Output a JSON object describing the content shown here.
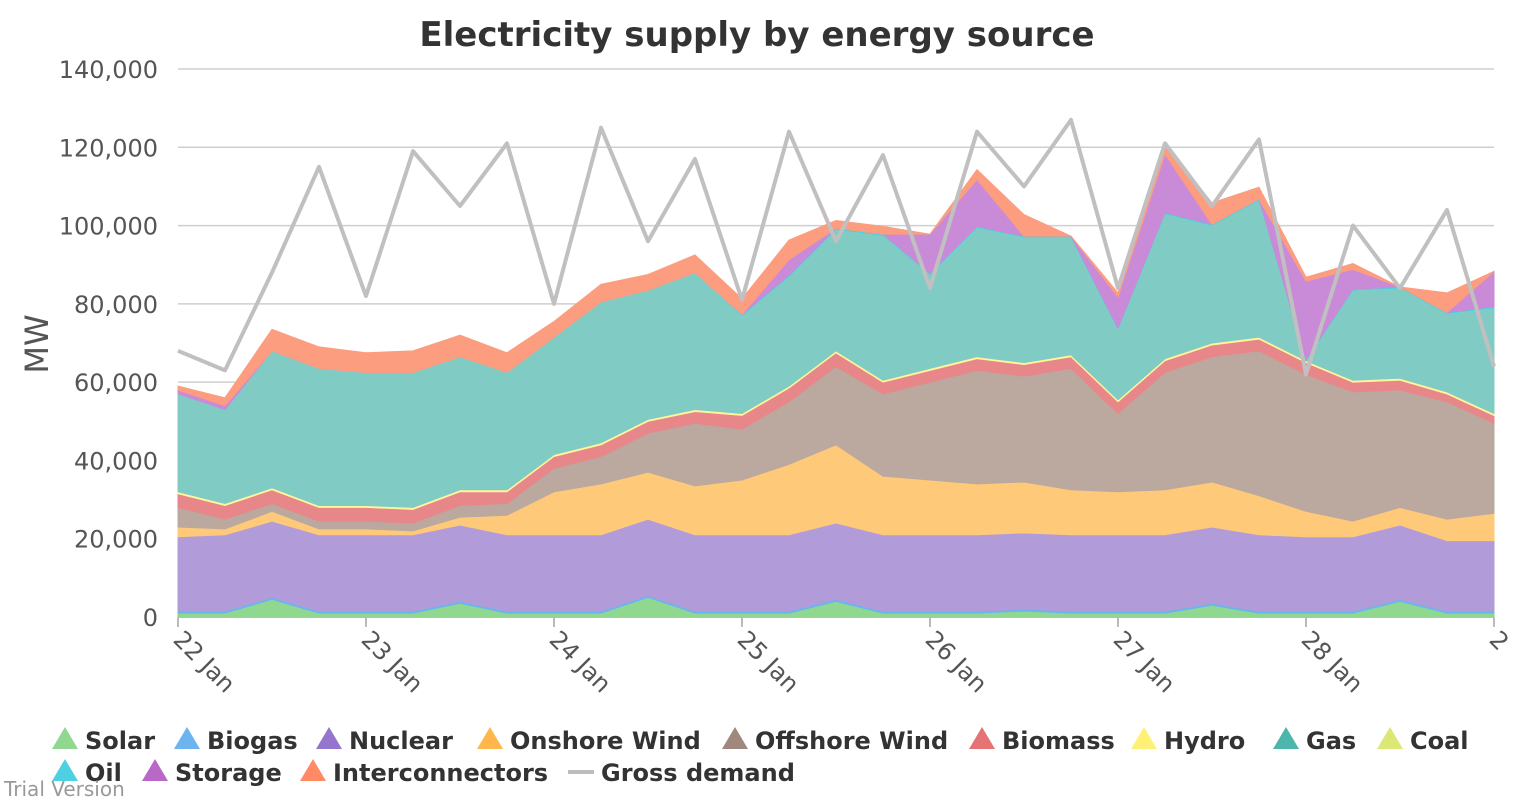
{
  "chart_data": {
    "type": "area",
    "title": "Electricity supply by energy source",
    "ylabel": "MW",
    "xlabel": "",
    "ylim": [
      0,
      140000
    ],
    "yticks": [
      0,
      20000,
      40000,
      60000,
      80000,
      100000,
      120000,
      140000
    ],
    "ytick_labels": [
      "0",
      "20,000",
      "40,000",
      "60,000",
      "80,000",
      "100,000",
      "120,000",
      "140,000"
    ],
    "xlim": [
      0,
      7
    ],
    "xticks": [
      0,
      1,
      2,
      3,
      4,
      5,
      6,
      7
    ],
    "xtick_labels": [
      "22 Jan",
      "23 Jan",
      "24 Jan",
      "25 Jan",
      "26 Jan",
      "27 Jan",
      "28 Jan",
      "2"
    ],
    "grid": true,
    "legend_position": "bottom",
    "x": [
      0,
      0.25,
      0.5,
      0.75,
      1,
      1.25,
      1.5,
      1.75,
      2,
      2.25,
      2.5,
      2.75,
      3,
      3.25,
      3.5,
      3.75,
      4,
      4.25,
      4.5,
      4.75,
      5,
      5.25,
      5.5,
      5.75,
      6,
      6.25,
      6.5,
      6.75,
      7
    ],
    "series": [
      {
        "name": "Solar",
        "color": "#90d890",
        "values": [
          1000,
          1000,
          4500,
          1000,
          1000,
          1000,
          3500,
          1000,
          1000,
          1000,
          5000,
          1000,
          1000,
          1000,
          4000,
          1000,
          1000,
          1000,
          1500,
          1000,
          1000,
          1000,
          3000,
          1000,
          1000,
          1000,
          4000,
          1000,
          1000
        ]
      },
      {
        "name": "Biogas",
        "color": "#6bb4f0",
        "values": [
          500,
          500,
          500,
          500,
          500,
          500,
          500,
          500,
          500,
          500,
          500,
          500,
          500,
          500,
          500,
          500,
          500,
          500,
          500,
          500,
          500,
          500,
          500,
          500,
          500,
          500,
          500,
          500,
          500
        ]
      },
      {
        "name": "Nuclear",
        "color": "#b19cd9",
        "values": [
          19000,
          19500,
          19500,
          19500,
          19500,
          19500,
          19500,
          19500,
          19500,
          19500,
          19500,
          19500,
          19500,
          19500,
          19500,
          19500,
          19500,
          19500,
          19500,
          19500,
          19500,
          19500,
          19500,
          19500,
          19000,
          19000,
          19000,
          18000,
          18000
        ]
      },
      {
        "name": "Onshore Wind",
        "color": "#ffc97a",
        "values": [
          2500,
          1500,
          2500,
          1500,
          1500,
          1000,
          2000,
          5000,
          11000,
          13000,
          12000,
          12500,
          14000,
          18000,
          20000,
          15000,
          14000,
          13000,
          13000,
          11500,
          11000,
          11500,
          11500,
          10000,
          6500,
          4000,
          4500,
          5500,
          7000
        ]
      },
      {
        "name": "Offshore Wind",
        "color": "#bba89f",
        "values": [
          5000,
          2500,
          2000,
          2000,
          2000,
          2000,
          3000,
          3000,
          6000,
          7000,
          10000,
          16000,
          13000,
          16000,
          20000,
          21000,
          25000,
          29000,
          27000,
          31000,
          20000,
          30000,
          32000,
          37000,
          35000,
          33000,
          30000,
          30000,
          23000
        ]
      },
      {
        "name": "Biomass",
        "color": "#e8878a",
        "values": [
          3500,
          3500,
          3500,
          3500,
          3500,
          3500,
          3500,
          3000,
          3000,
          3000,
          3000,
          3000,
          3500,
          3500,
          3500,
          3000,
          3000,
          3000,
          3000,
          3000,
          3000,
          3000,
          3000,
          3000,
          3000,
          2500,
          2500,
          2000,
          2000
        ]
      },
      {
        "name": "Hydro",
        "color": "#fff59a",
        "values": [
          500,
          500,
          500,
          500,
          500,
          500,
          500,
          500,
          500,
          500,
          500,
          500,
          500,
          500,
          500,
          500,
          500,
          500,
          500,
          500,
          500,
          500,
          500,
          500,
          500,
          500,
          500,
          500,
          500
        ]
      },
      {
        "name": "Gas",
        "color": "#80cbc4",
        "values": [
          25000,
          24000,
          35000,
          35000,
          34000,
          34500,
          34000,
          30000,
          30000,
          36000,
          33000,
          35000,
          25000,
          28000,
          31000,
          37000,
          24000,
          33000,
          32000,
          30000,
          18000,
          37000,
          30000,
          35000,
          0,
          23000,
          23000,
          20000,
          27000
        ]
      },
      {
        "name": "Coal",
        "color": "#e6ec86",
        "values": [
          0,
          0,
          0,
          0,
          0,
          0,
          0,
          0,
          0,
          0,
          0,
          0,
          0,
          0,
          0,
          0,
          0,
          0,
          0,
          0,
          0,
          0,
          0,
          0,
          0,
          0,
          0,
          0,
          0
        ]
      },
      {
        "name": "Oil",
        "color": "#4dd0e1",
        "values": [
          0,
          0,
          0,
          0,
          0,
          0,
          0,
          0,
          0,
          0,
          0,
          0,
          300,
          300,
          300,
          300,
          300,
          300,
          300,
          300,
          300,
          300,
          300,
          300,
          300,
          300,
          300,
          300,
          300
        ]
      },
      {
        "name": "Storage",
        "color": "#c98ad8",
        "values": [
          1000,
          1000,
          0,
          0,
          0,
          0,
          0,
          0,
          0,
          0,
          0,
          0,
          0,
          4000,
          0,
          0,
          10000,
          12000,
          0,
          0,
          8000,
          15000,
          0,
          0,
          20000,
          5000,
          0,
          0,
          9000
        ]
      },
      {
        "name": "Interconnectors",
        "color": "#fc9d7f",
        "values": [
          1000,
          2000,
          5500,
          5500,
          5000,
          5500,
          5500,
          5000,
          4000,
          4500,
          4000,
          4500,
          4000,
          5000,
          2000,
          2000,
          0,
          2500,
          5500,
          0,
          1000,
          2500,
          5500,
          3000,
          1000,
          1500,
          0,
          5000,
          0
        ]
      }
    ],
    "demand": {
      "name": "Gross demand",
      "color": "#c0c0c0",
      "values": [
        68000,
        63000,
        88000,
        115000,
        82000,
        119000,
        105000,
        121000,
        80000,
        125000,
        96000,
        117000,
        81000,
        124000,
        96000,
        118000,
        84000,
        124000,
        110000,
        127000,
        84000,
        121000,
        105000,
        122000,
        62000,
        100000,
        84000,
        104000,
        64000
      ]
    },
    "legend": [
      {
        "label": "Solar",
        "color": "#90d890",
        "symbol": "triangle"
      },
      {
        "label": "Biogas",
        "color": "#6bb4f0",
        "symbol": "triangle"
      },
      {
        "label": "Nuclear",
        "color": "#9575cd",
        "symbol": "triangle"
      },
      {
        "label": "Onshore Wind",
        "color": "#ffb74d",
        "symbol": "triangle"
      },
      {
        "label": "Offshore Wind",
        "color": "#a1887f",
        "symbol": "triangle"
      },
      {
        "label": "Biomass",
        "color": "#e57373",
        "symbol": "triangle"
      },
      {
        "label": "Hydro",
        "color": "#fff176",
        "symbol": "triangle"
      },
      {
        "label": "Gas",
        "color": "#4db6ac",
        "symbol": "triangle"
      },
      {
        "label": "Coal",
        "color": "#dce775",
        "symbol": "triangle"
      },
      {
        "label": "Oil",
        "color": "#4dd0e1",
        "symbol": "triangle"
      },
      {
        "label": "Storage",
        "color": "#ba68c8",
        "symbol": "triangle"
      },
      {
        "label": "Interconnectors",
        "color": "#ff8a65",
        "symbol": "triangle"
      },
      {
        "label": "Gross demand",
        "color": "#bdbdbd",
        "symbol": "line"
      }
    ]
  },
  "watermark": "Trial Version"
}
